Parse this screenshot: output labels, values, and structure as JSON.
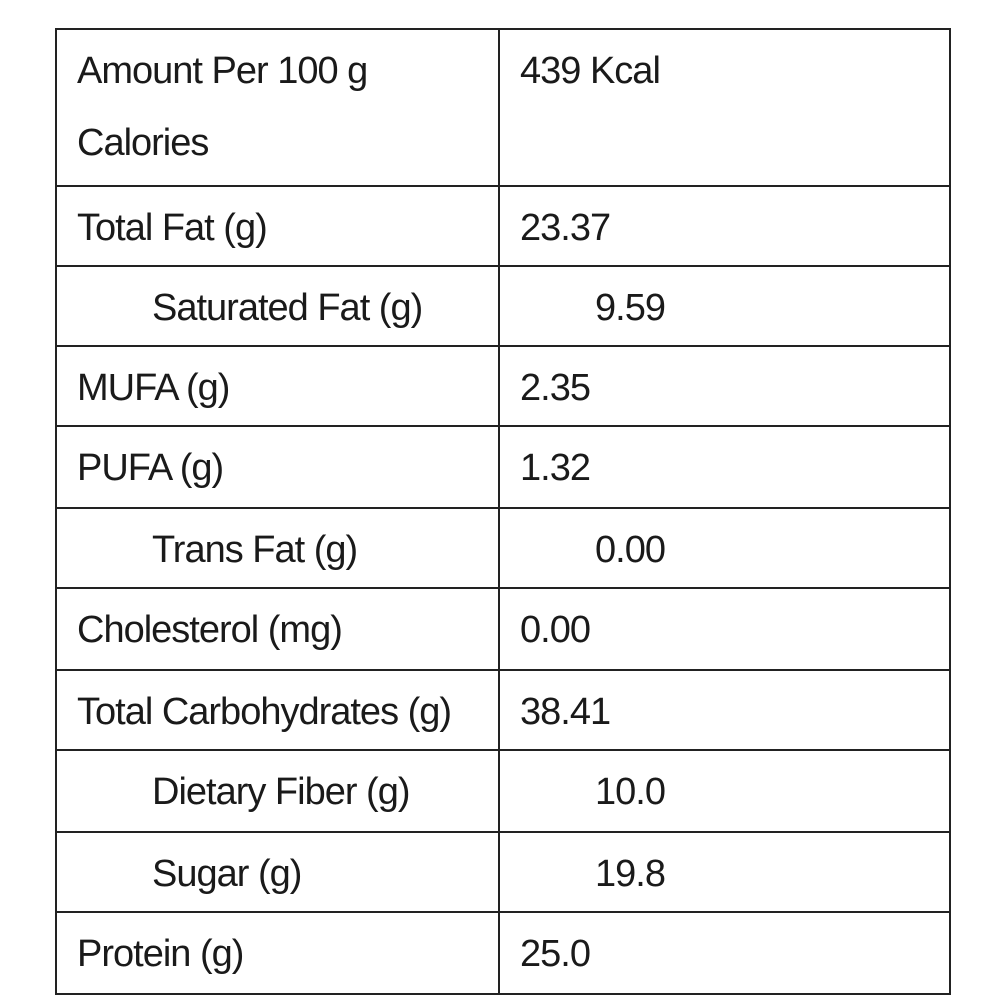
{
  "table": {
    "header": {
      "label_line1": "Amount Per 100 g",
      "label_line2": "Calories",
      "value": "439 Kcal"
    },
    "rows": [
      {
        "label": "Total Fat (g)",
        "value": "23.37",
        "indent": false
      },
      {
        "label": "Saturated Fat (g)",
        "value": "9.59",
        "indent": true
      },
      {
        "label": "MUFA (g)",
        "value": "2.35",
        "indent": false
      },
      {
        "label": "PUFA (g)",
        "value": "1.32",
        "indent": false
      },
      {
        "label": "Trans Fat (g)",
        "value": "0.00",
        "indent": true
      },
      {
        "label": "Cholesterol (mg)",
        "value": "0.00",
        "indent": false
      },
      {
        "label": "Total Carbohydrates (g)",
        "value": "38.41",
        "indent": false
      },
      {
        "label": "Dietary Fiber (g)",
        "value": "10.0",
        "indent": true
      },
      {
        "label": "Sugar (g)",
        "value": "19.8",
        "indent": true
      },
      {
        "label": "Protein (g)",
        "value": "25.0",
        "indent": false
      }
    ]
  }
}
